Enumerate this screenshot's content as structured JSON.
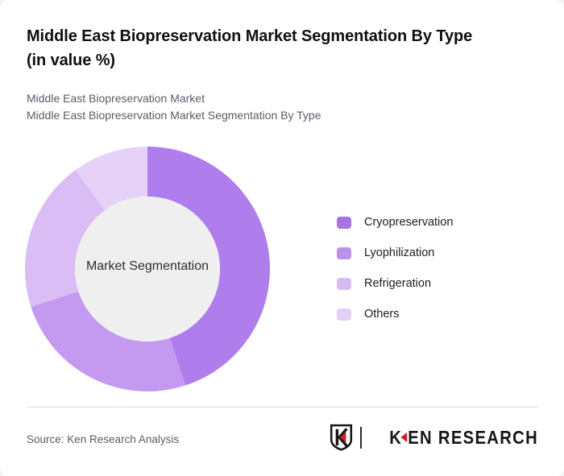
{
  "header": {
    "title": "Middle East Biopreservation Market Segmentation By Type (in value %)",
    "subtitle_line1": "Middle East Biopreservation Market",
    "subtitle_line2": "Middle East Biopreservation Market Segmentation By Type"
  },
  "chart_data": {
    "type": "pie",
    "subtype": "donut",
    "title": "Middle East Biopreservation Market Segmentation By Type (in value %)",
    "unit": "value %",
    "center_label": "Market Segmentation",
    "categories": [
      "Cryopreservation",
      "Lyophilization",
      "Refrigeration",
      "Others"
    ],
    "values": [
      45,
      25,
      20,
      10
    ],
    "colors": [
      "#b07eec",
      "#c39af0",
      "#d9bdf4",
      "#e6d2f9"
    ],
    "legend_colors": [
      "#a973e1",
      "#bb90e9",
      "#d7bcf2",
      "#e2d0f6"
    ],
    "start_angle_deg": 0,
    "direction": "clockwise",
    "inner_radius_ratio": 0.59,
    "hole_fill": "#efefef",
    "legend_position": "right",
    "grid": false
  },
  "legend": {
    "items": [
      {
        "label": "Cryopreservation"
      },
      {
        "label": "Lyophilization"
      },
      {
        "label": "Refrigeration"
      },
      {
        "label": "Others"
      }
    ]
  },
  "footer": {
    "source": "Source: Ken Research Analysis",
    "brand": {
      "wordmark_prefix": "K",
      "wordmark_suffix": "EN RESEARCH",
      "accent_color": "#cf2027"
    }
  }
}
